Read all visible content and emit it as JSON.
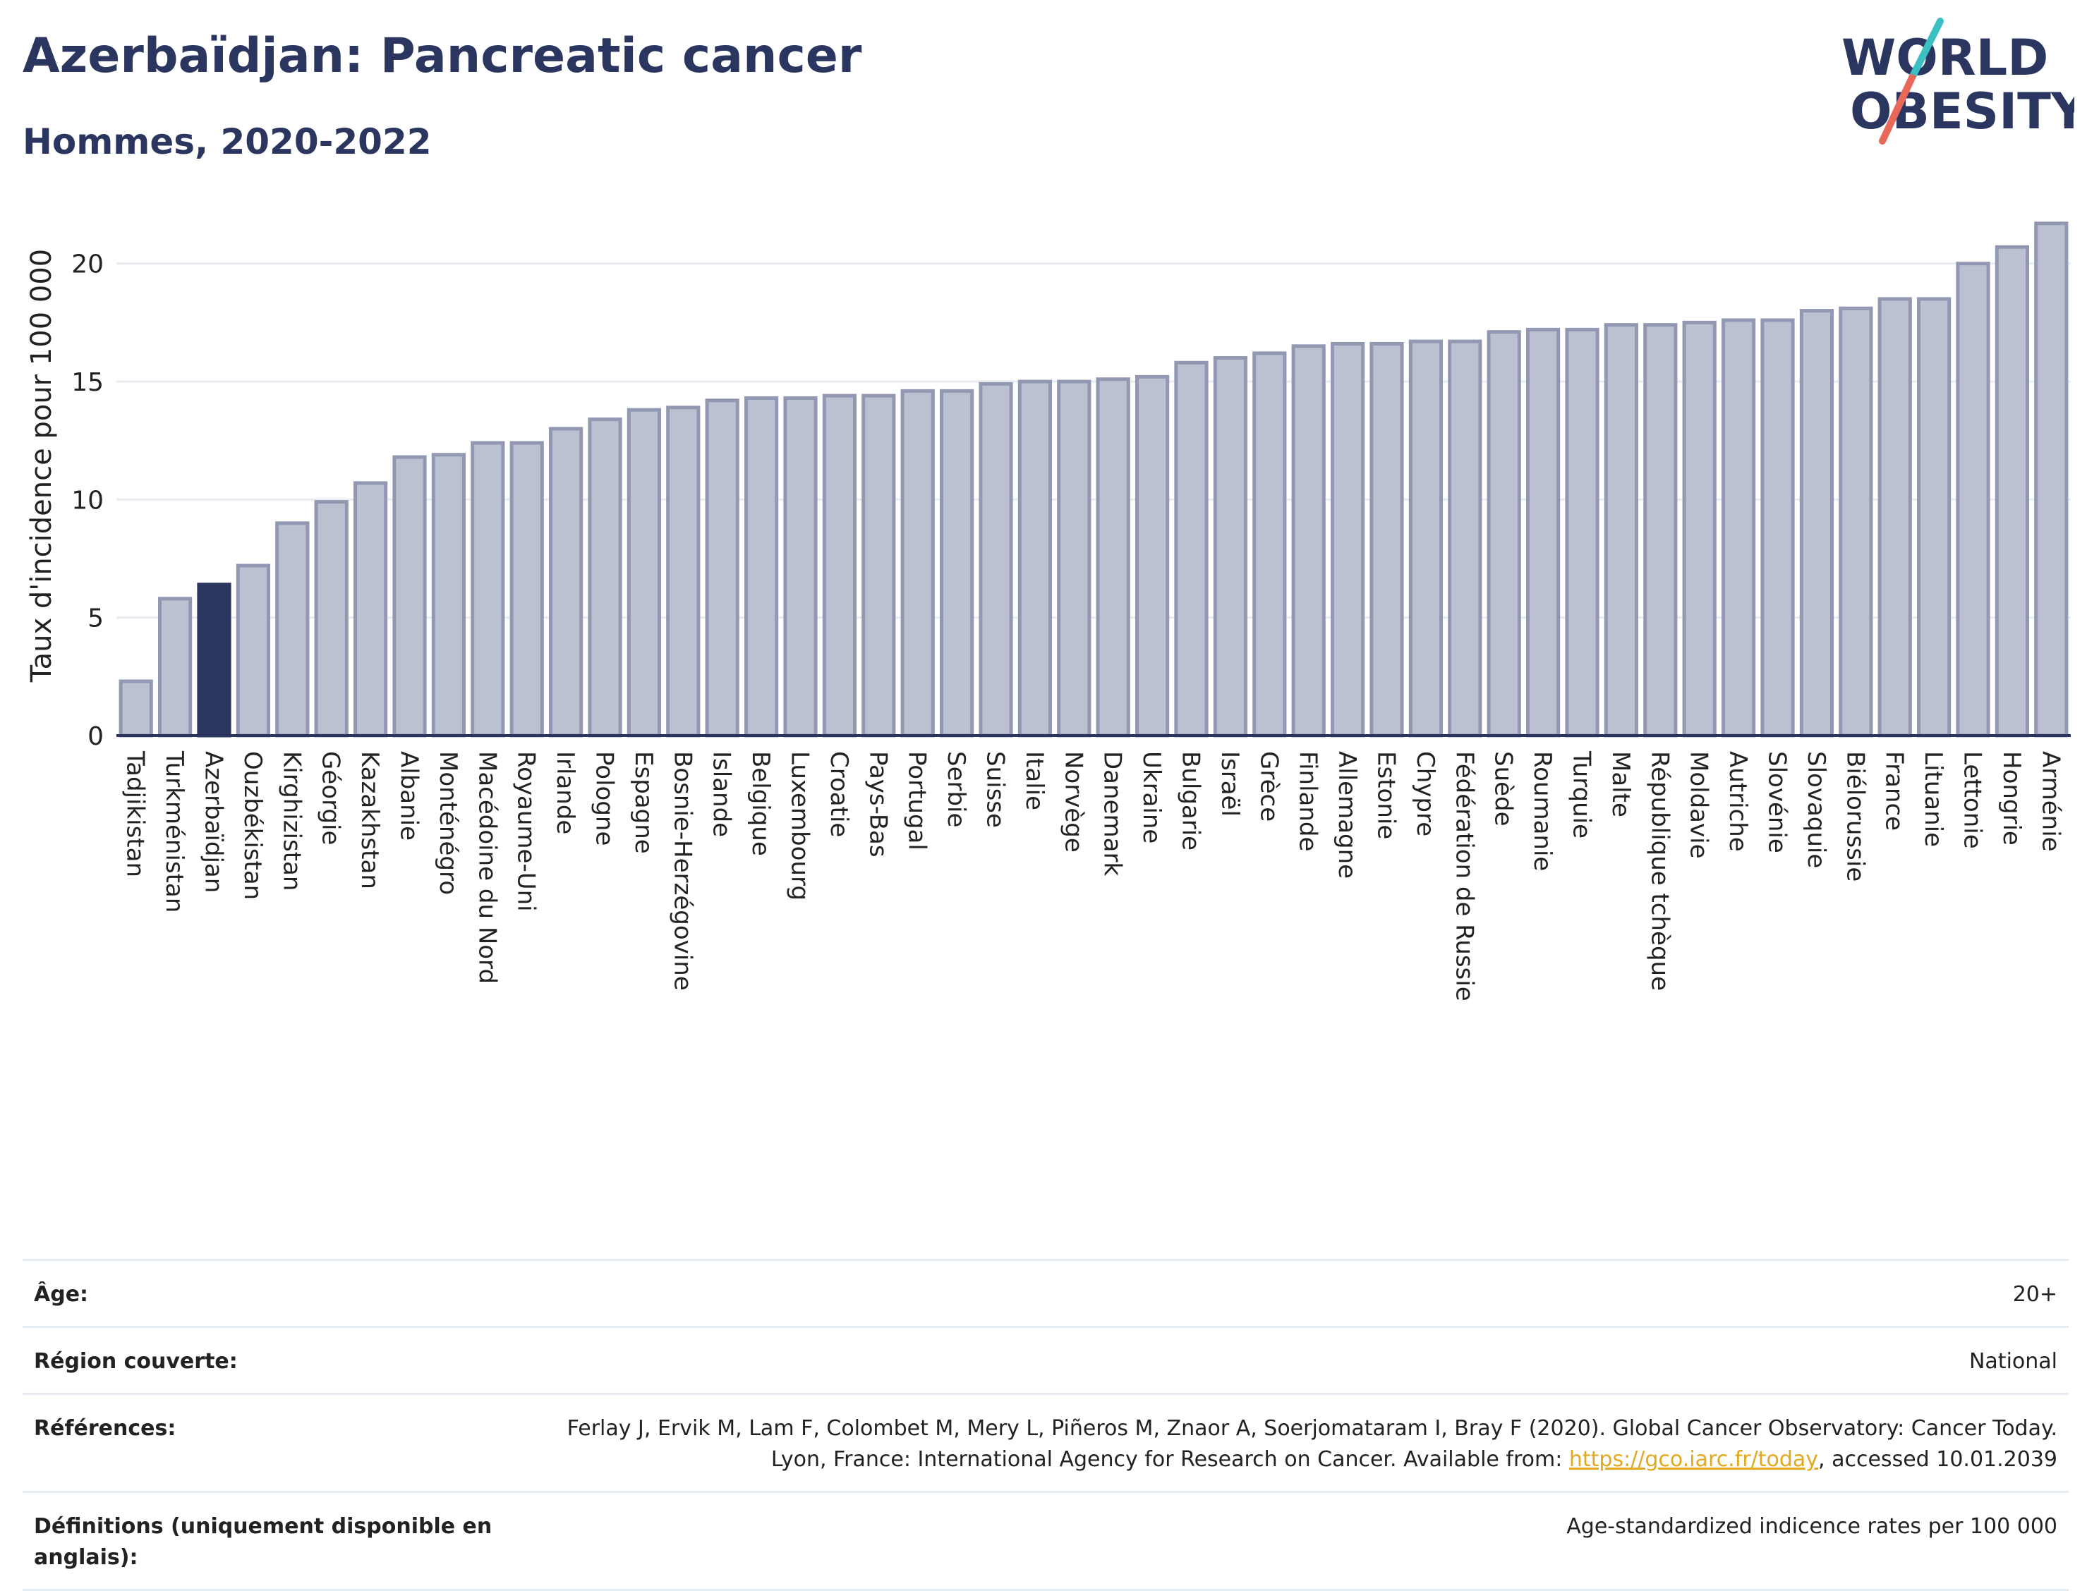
{
  "header": {
    "title": "Azerbaïdjan: Pancreatic cancer",
    "subtitle": "Hommes, 2020-2022"
  },
  "logo": {
    "line1": "WORLD",
    "line2": "OBESITY"
  },
  "colors": {
    "bar": "#bcc1d1",
    "bar_stroke": "#9298b2",
    "highlight": "#2b3660",
    "axis": "#2b3660",
    "grid": "#e8ebf0",
    "link": "#e3a81f"
  },
  "chart_data": {
    "type": "bar",
    "ylabel": "Taux d'incidence pour 100 000",
    "xlabel": "",
    "ylim": [
      0,
      22.5
    ],
    "yticks": [
      0,
      5,
      10,
      15,
      20
    ],
    "grid": true,
    "highlight": "Azerbaïdjan",
    "categories": [
      "Tadjikistan",
      "Turkménistan",
      "Azerbaïdjan",
      "Ouzbékistan",
      "Kirghizistan",
      "Géorgie",
      "Kazakhstan",
      "Albanie",
      "Monténégro",
      "Macédoine du Nord",
      "Royaume-Uni",
      "Irlande",
      "Pologne",
      "Espagne",
      "Bosnie-Herzégovine",
      "Islande",
      "Belgique",
      "Luxembourg",
      "Croatie",
      "Pays-Bas",
      "Portugal",
      "Serbie",
      "Suisse",
      "Italie",
      "Norvège",
      "Danemark",
      "Ukraine",
      "Bulgarie",
      "Israël",
      "Grèce",
      "Finlande",
      "Allemagne",
      "Estonie",
      "Chypre",
      "Fédération de Russie",
      "Suède",
      "Roumanie",
      "Turquie",
      "Malte",
      "République tchèque",
      "Moldavie",
      "Autriche",
      "Slovénie",
      "Slovaquie",
      "Biélorussie",
      "France",
      "Lituanie",
      "Lettonie",
      "Hongrie",
      "Arménie"
    ],
    "values": [
      2.3,
      5.8,
      6.4,
      7.2,
      9.0,
      9.9,
      10.7,
      11.8,
      11.9,
      12.4,
      12.4,
      13.0,
      13.4,
      13.8,
      13.9,
      14.2,
      14.3,
      14.3,
      14.4,
      14.4,
      14.6,
      14.6,
      14.9,
      15.0,
      15.0,
      15.1,
      15.2,
      15.8,
      16.0,
      16.2,
      16.5,
      16.6,
      16.6,
      16.7,
      16.7,
      17.1,
      17.2,
      17.2,
      17.4,
      17.4,
      17.5,
      17.6,
      17.6,
      18.0,
      18.1,
      18.5,
      18.5,
      20.0,
      20.7,
      21.7
    ]
  },
  "info": {
    "age_label": "Âge:",
    "age_value": "20+",
    "region_label": "Région couverte:",
    "region_value": "National",
    "refs_label": "Références:",
    "refs_text": "Ferlay J, Ervik M, Lam F, Colombet M, Mery L, Piñeros M, Znaor A, Soerjomataram I, Bray F (2020). Global Cancer Observatory: Cancer Today. Lyon, France: International Agency for Research on Cancer. Available from: ",
    "refs_link": "https://gco.iarc.fr/today",
    "refs_suffix": ", accessed 10.01.2039",
    "defs_label": "Définitions (uniquement disponible en anglais):",
    "defs_value": "Age-standardized indicence rates per 100 000"
  }
}
